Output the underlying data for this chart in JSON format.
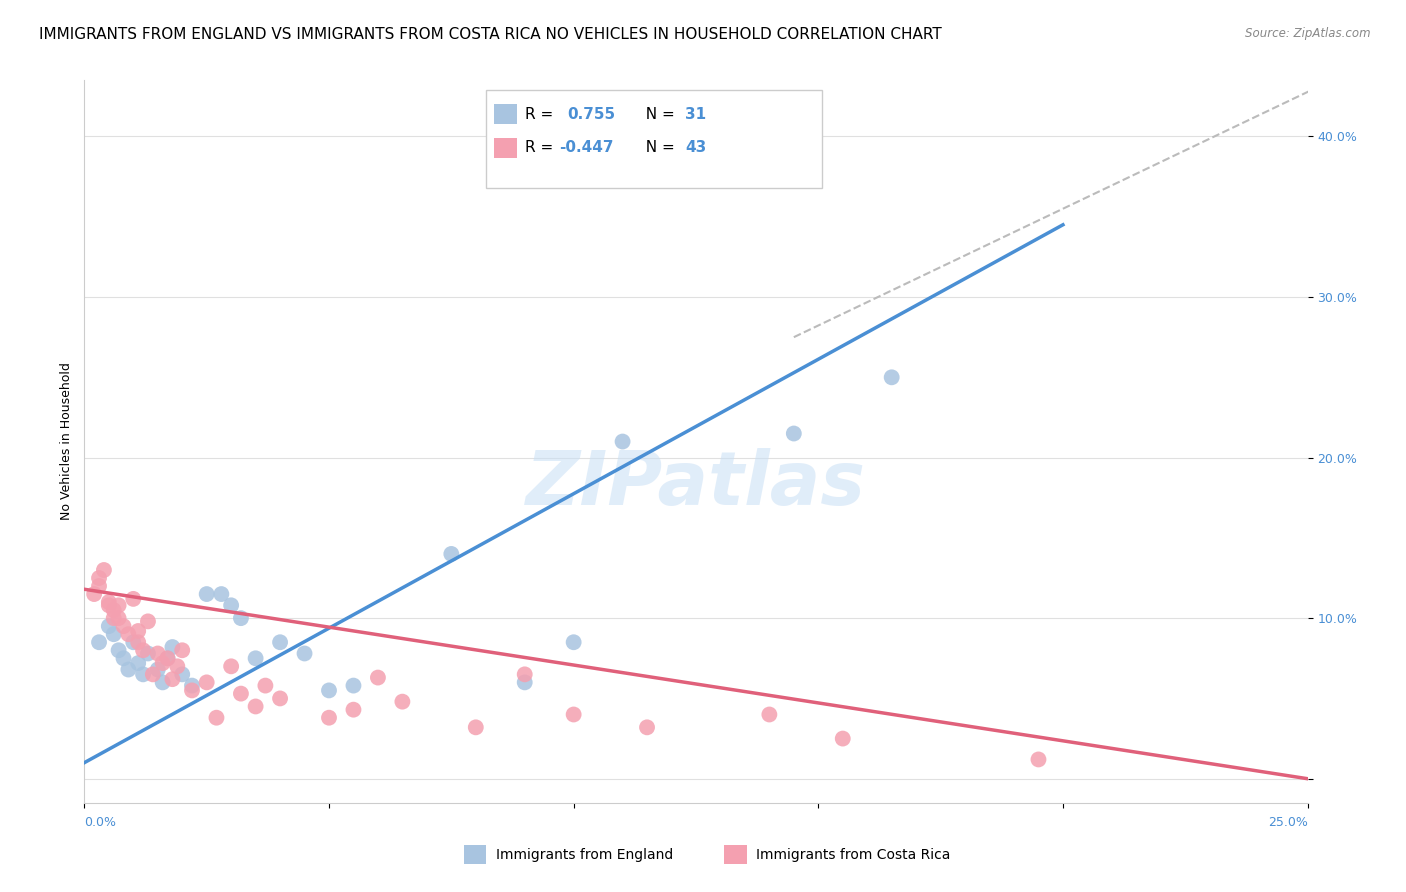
{
  "title": "IMMIGRANTS FROM ENGLAND VS IMMIGRANTS FROM COSTA RICA NO VEHICLES IN HOUSEHOLD CORRELATION CHART",
  "source": "Source: ZipAtlas.com",
  "ylabel": "No Vehicles in Household",
  "y_ticks": [
    0.0,
    0.1,
    0.2,
    0.3,
    0.4
  ],
  "y_tick_labels": [
    "",
    "10.0%",
    "20.0%",
    "30.0%",
    "40.0%"
  ],
  "xlim": [
    0.0,
    0.25
  ],
  "ylim": [
    -0.015,
    0.435
  ],
  "watermark": "ZIPatlas",
  "england_color": "#a8c4e0",
  "costa_rica_color": "#f4a0b0",
  "england_line_color": "#4a8fd4",
  "costa_rica_line_color": "#e0607a",
  "legend_R_color": "#4a8fd4",
  "england_line_x0": 0.0,
  "england_line_y0": 0.01,
  "england_line_x1": 0.2,
  "england_line_y1": 0.345,
  "costa_rica_line_x0": 0.0,
  "costa_rica_line_y0": 0.118,
  "costa_rica_line_x1": 0.25,
  "costa_rica_line_y1": 0.0,
  "dash_line_x0": 0.145,
  "dash_line_y0": 0.275,
  "dash_line_x1": 0.255,
  "dash_line_y1": 0.435,
  "england_scatter_x": [
    0.003,
    0.005,
    0.006,
    0.007,
    0.008,
    0.009,
    0.01,
    0.011,
    0.012,
    0.013,
    0.015,
    0.016,
    0.017,
    0.018,
    0.02,
    0.022,
    0.025,
    0.028,
    0.03,
    0.032,
    0.035,
    0.04,
    0.045,
    0.05,
    0.055,
    0.075,
    0.09,
    0.1,
    0.11,
    0.145,
    0.165
  ],
  "england_scatter_y": [
    0.085,
    0.095,
    0.09,
    0.08,
    0.075,
    0.068,
    0.085,
    0.072,
    0.065,
    0.078,
    0.068,
    0.06,
    0.075,
    0.082,
    0.065,
    0.058,
    0.115,
    0.115,
    0.108,
    0.1,
    0.075,
    0.085,
    0.078,
    0.055,
    0.058,
    0.14,
    0.06,
    0.085,
    0.21,
    0.215,
    0.25
  ],
  "costa_rica_scatter_x": [
    0.002,
    0.003,
    0.003,
    0.004,
    0.005,
    0.005,
    0.006,
    0.006,
    0.007,
    0.007,
    0.008,
    0.009,
    0.01,
    0.011,
    0.011,
    0.012,
    0.013,
    0.014,
    0.015,
    0.016,
    0.017,
    0.018,
    0.019,
    0.02,
    0.022,
    0.025,
    0.027,
    0.03,
    0.032,
    0.035,
    0.037,
    0.04,
    0.05,
    0.055,
    0.06,
    0.065,
    0.08,
    0.09,
    0.1,
    0.115,
    0.14,
    0.155,
    0.195
  ],
  "costa_rica_scatter_y": [
    0.115,
    0.125,
    0.12,
    0.13,
    0.11,
    0.108,
    0.105,
    0.1,
    0.1,
    0.108,
    0.095,
    0.09,
    0.112,
    0.085,
    0.092,
    0.08,
    0.098,
    0.065,
    0.078,
    0.072,
    0.075,
    0.062,
    0.07,
    0.08,
    0.055,
    0.06,
    0.038,
    0.07,
    0.053,
    0.045,
    0.058,
    0.05,
    0.038,
    0.043,
    0.063,
    0.048,
    0.032,
    0.065,
    0.04,
    0.032,
    0.04,
    0.025,
    0.012
  ],
  "background_color": "#ffffff",
  "grid_color": "#e0e0e0",
  "title_fontsize": 11,
  "axis_label_fontsize": 9,
  "tick_label_fontsize": 9,
  "legend_fontsize": 11
}
